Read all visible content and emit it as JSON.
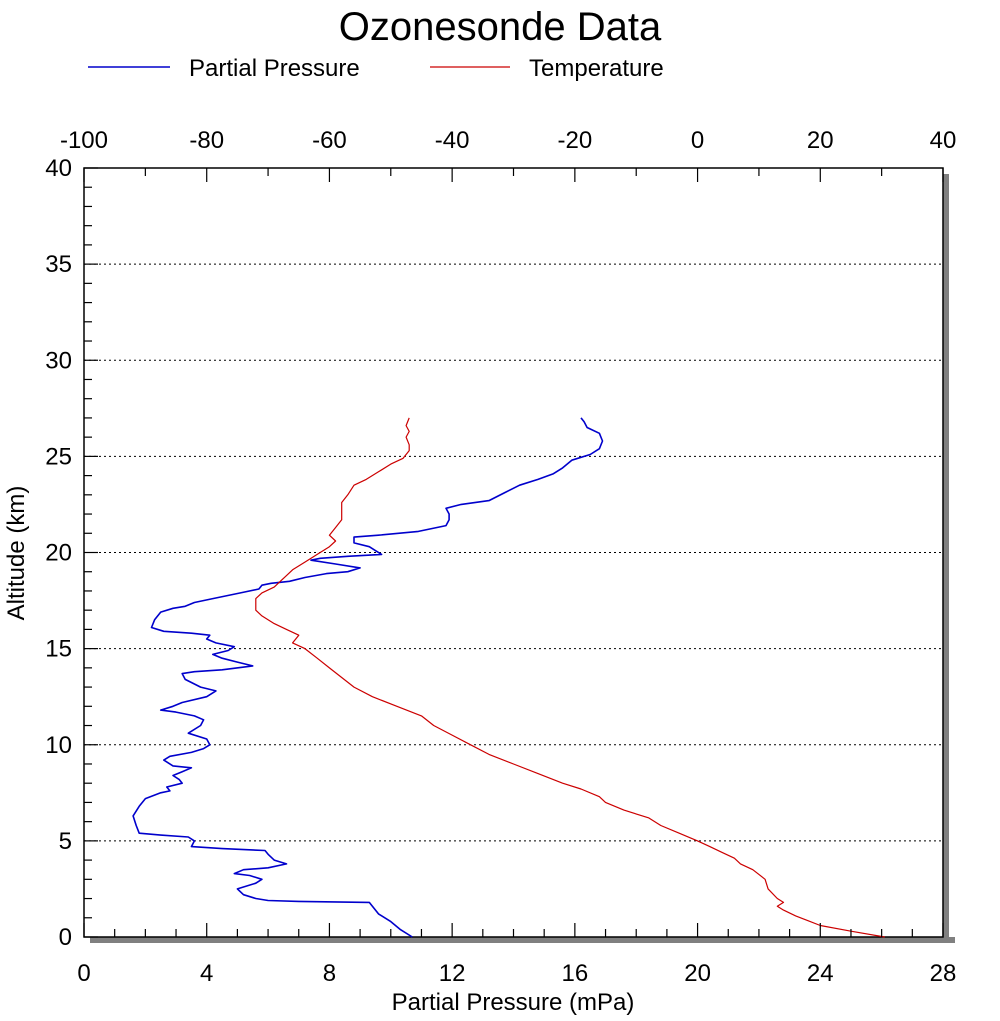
{
  "chart_data": {
    "type": "line",
    "title": "Ozonesonde Data",
    "xlabel": "Partial Pressure (mPa)",
    "ylabel": "Altitude (km)",
    "x_bottom": {
      "range": [
        0,
        28
      ],
      "ticks": [
        "0",
        "4",
        "8",
        "12",
        "16",
        "20",
        "24",
        "28"
      ]
    },
    "x_top": {
      "range": [
        -100,
        40
      ],
      "ticks": [
        "-100",
        "-80",
        "-60",
        "-40",
        "-20",
        "0",
        "20",
        "40"
      ]
    },
    "y": {
      "range": [
        0,
        40
      ],
      "ticks": [
        "0",
        "5",
        "10",
        "15",
        "20",
        "25",
        "30",
        "35",
        "40"
      ]
    },
    "grid": "horizontal dotted at every 5 km",
    "legend_position": "top",
    "series": [
      {
        "name": "Partial Pressure",
        "color": "#0000cc",
        "axis": "bottom",
        "points": [
          [
            10.7,
            0
          ],
          [
            10.3,
            0.4
          ],
          [
            10.0,
            0.8
          ],
          [
            9.6,
            1.2
          ],
          [
            9.4,
            1.6
          ],
          [
            9.3,
            1.8
          ],
          [
            7.0,
            1.85
          ],
          [
            6.0,
            1.9
          ],
          [
            5.6,
            2.0
          ],
          [
            5.2,
            2.2
          ],
          [
            5.0,
            2.5
          ],
          [
            5.6,
            2.8
          ],
          [
            5.8,
            3.0
          ],
          [
            5.4,
            3.2
          ],
          [
            4.9,
            3.3
          ],
          [
            5.2,
            3.5
          ],
          [
            6.0,
            3.6
          ],
          [
            6.6,
            3.8
          ],
          [
            6.2,
            4.0
          ],
          [
            6.0,
            4.3
          ],
          [
            5.9,
            4.5
          ],
          [
            4.5,
            4.6
          ],
          [
            3.5,
            4.7
          ],
          [
            3.6,
            5.0
          ],
          [
            3.4,
            5.2
          ],
          [
            2.5,
            5.3
          ],
          [
            1.8,
            5.4
          ],
          [
            1.7,
            5.8
          ],
          [
            1.6,
            6.3
          ],
          [
            1.8,
            6.8
          ],
          [
            2.0,
            7.2
          ],
          [
            2.5,
            7.5
          ],
          [
            2.8,
            7.6
          ],
          [
            2.7,
            7.8
          ],
          [
            3.2,
            8.0
          ],
          [
            3.1,
            8.2
          ],
          [
            2.9,
            8.4
          ],
          [
            3.2,
            8.6
          ],
          [
            3.5,
            8.8
          ],
          [
            2.9,
            8.9
          ],
          [
            2.6,
            9.2
          ],
          [
            2.8,
            9.4
          ],
          [
            3.5,
            9.6
          ],
          [
            3.9,
            9.8
          ],
          [
            4.1,
            10.0
          ],
          [
            4.0,
            10.3
          ],
          [
            3.4,
            10.6
          ],
          [
            3.8,
            11.0
          ],
          [
            3.9,
            11.3
          ],
          [
            3.6,
            11.5
          ],
          [
            3.0,
            11.7
          ],
          [
            2.5,
            11.8
          ],
          [
            2.9,
            12.0
          ],
          [
            3.2,
            12.2
          ],
          [
            4.0,
            12.5
          ],
          [
            4.3,
            12.8
          ],
          [
            3.8,
            13.0
          ],
          [
            3.3,
            13.4
          ],
          [
            3.2,
            13.7
          ],
          [
            3.6,
            13.8
          ],
          [
            4.5,
            13.9
          ],
          [
            5.5,
            14.1
          ],
          [
            5.0,
            14.3
          ],
          [
            4.5,
            14.5
          ],
          [
            4.2,
            14.7
          ],
          [
            4.7,
            14.9
          ],
          [
            4.9,
            15.1
          ],
          [
            4.3,
            15.3
          ],
          [
            4.0,
            15.5
          ],
          [
            4.1,
            15.7
          ],
          [
            3.5,
            15.8
          ],
          [
            2.6,
            15.9
          ],
          [
            2.2,
            16.1
          ],
          [
            2.3,
            16.5
          ],
          [
            2.5,
            16.9
          ],
          [
            2.9,
            17.1
          ],
          [
            3.3,
            17.2
          ],
          [
            3.6,
            17.4
          ],
          [
            4.2,
            17.6
          ],
          [
            5.1,
            17.9
          ],
          [
            5.7,
            18.1
          ],
          [
            5.8,
            18.3
          ],
          [
            6.1,
            18.4
          ],
          [
            6.7,
            18.5
          ],
          [
            7.2,
            18.7
          ],
          [
            7.9,
            18.9
          ],
          [
            8.6,
            19.0
          ],
          [
            9.0,
            19.2
          ],
          [
            8.2,
            19.4
          ],
          [
            7.4,
            19.6
          ],
          [
            7.7,
            19.7
          ],
          [
            8.6,
            19.8
          ],
          [
            9.7,
            19.9
          ],
          [
            9.5,
            20.1
          ],
          [
            9.3,
            20.3
          ],
          [
            8.8,
            20.5
          ],
          [
            8.8,
            20.8
          ],
          [
            9.6,
            20.9
          ],
          [
            10.9,
            21.1
          ],
          [
            11.8,
            21.4
          ],
          [
            11.9,
            21.7
          ],
          [
            11.9,
            22.0
          ],
          [
            11.8,
            22.3
          ],
          [
            12.3,
            22.5
          ],
          [
            13.2,
            22.7
          ],
          [
            13.7,
            23.1
          ],
          [
            14.2,
            23.5
          ],
          [
            14.8,
            23.8
          ],
          [
            15.3,
            24.1
          ],
          [
            15.6,
            24.4
          ],
          [
            15.9,
            24.8
          ],
          [
            16.5,
            25.1
          ],
          [
            16.8,
            25.4
          ],
          [
            16.9,
            25.8
          ],
          [
            16.8,
            26.2
          ],
          [
            16.4,
            26.5
          ],
          [
            16.3,
            26.8
          ],
          [
            16.2,
            27.0
          ]
        ]
      },
      {
        "name": "Temperature",
        "color": "#cc0000",
        "axis": "top",
        "points": [
          [
            30.5,
            0
          ],
          [
            25,
            0.3
          ],
          [
            20,
            0.6
          ],
          [
            18,
            0.85
          ],
          [
            16,
            1.1
          ],
          [
            14,
            1.4
          ],
          [
            13,
            1.6
          ],
          [
            14,
            1.8
          ],
          [
            13,
            2.0
          ],
          [
            11.5,
            2.5
          ],
          [
            11,
            3.0
          ],
          [
            9,
            3.5
          ],
          [
            7,
            3.8
          ],
          [
            6,
            4.1
          ],
          [
            4,
            4.4
          ],
          [
            2,
            4.7
          ],
          [
            0,
            5.0
          ],
          [
            -3,
            5.4
          ],
          [
            -6,
            5.8
          ],
          [
            -8,
            6.2
          ],
          [
            -12,
            6.6
          ],
          [
            -15,
            7.0
          ],
          [
            -16,
            7.3
          ],
          [
            -19,
            7.7
          ],
          [
            -22,
            8.0
          ],
          [
            -26,
            8.5
          ],
          [
            -30,
            9.0
          ],
          [
            -34,
            9.5
          ],
          [
            -37,
            10.0
          ],
          [
            -40,
            10.5
          ],
          [
            -43,
            11.0
          ],
          [
            -45,
            11.5
          ],
          [
            -49,
            12.0
          ],
          [
            -53,
            12.5
          ],
          [
            -56,
            13.0
          ],
          [
            -58,
            13.5
          ],
          [
            -60,
            14.0
          ],
          [
            -62,
            14.5
          ],
          [
            -64,
            15.0
          ],
          [
            -66,
            15.3
          ],
          [
            -65,
            15.7
          ],
          [
            -67,
            16.0
          ],
          [
            -69,
            16.3
          ],
          [
            -71,
            16.7
          ],
          [
            -72,
            17.0
          ],
          [
            -72,
            17.3
          ],
          [
            -72,
            17.6
          ],
          [
            -71,
            17.9
          ],
          [
            -69,
            18.2
          ],
          [
            -68,
            18.5
          ],
          [
            -67,
            18.8
          ],
          [
            -66,
            19.1
          ],
          [
            -64,
            19.5
          ],
          [
            -62,
            19.9
          ],
          [
            -60,
            20.3
          ],
          [
            -59,
            20.6
          ],
          [
            -60,
            20.9
          ],
          [
            -59,
            21.3
          ],
          [
            -58,
            21.7
          ],
          [
            -58,
            22.2
          ],
          [
            -58,
            22.6
          ],
          [
            -57,
            23.0
          ],
          [
            -56,
            23.5
          ],
          [
            -54,
            23.8
          ],
          [
            -52,
            24.2
          ],
          [
            -50,
            24.6
          ],
          [
            -48,
            24.9
          ],
          [
            -47,
            25.3
          ],
          [
            -47,
            25.6
          ],
          [
            -47.5,
            26.0
          ],
          [
            -47,
            26.3
          ],
          [
            -47.5,
            26.6
          ],
          [
            -47,
            27.0
          ]
        ]
      }
    ]
  }
}
